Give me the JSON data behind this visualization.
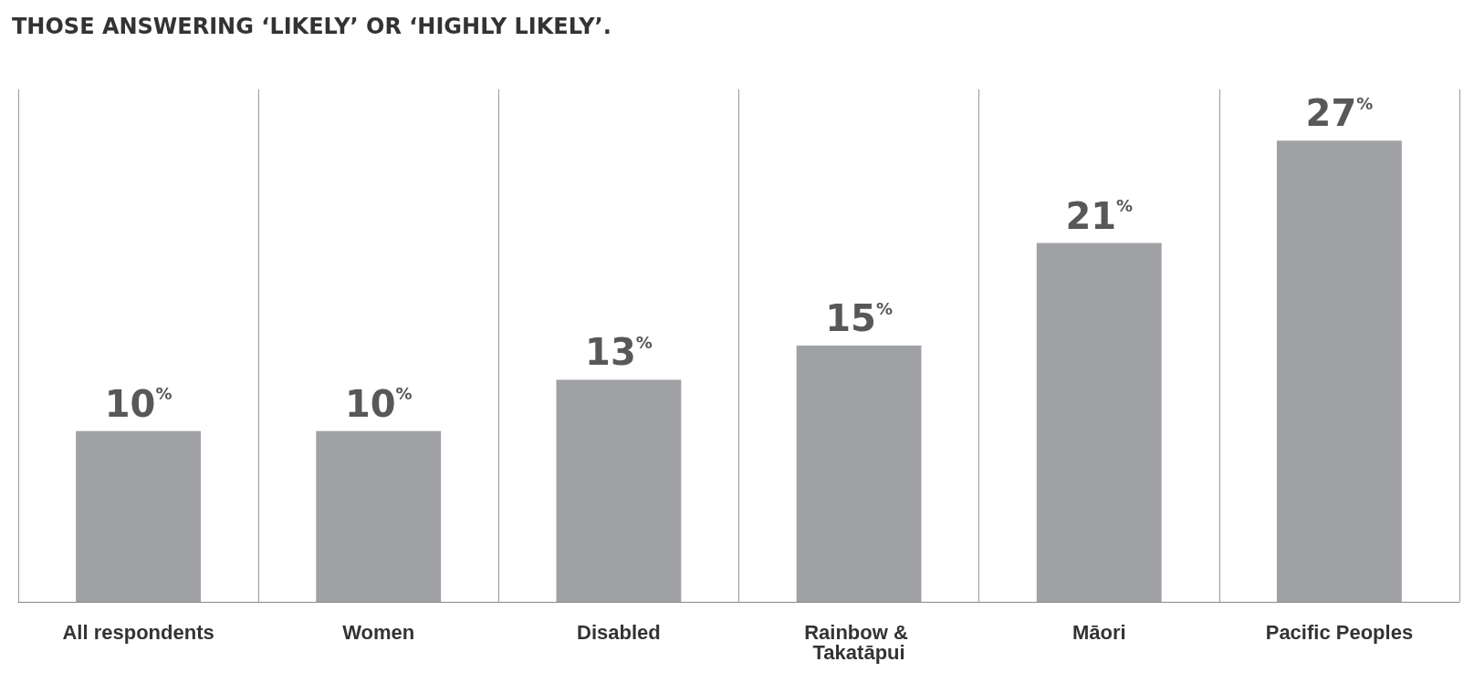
{
  "chart_data": {
    "type": "bar",
    "title": "THOSE ANSWERING ‘LIKELY’ OR ‘HIGHLY LIKELY’.",
    "categories": [
      "All respondents",
      "Women",
      "Disabled",
      "Rainbow & Takatāpui",
      "Māori",
      "Pacific Peoples"
    ],
    "values": [
      10,
      10,
      13,
      15,
      21,
      27
    ],
    "value_labels": [
      "10$^{%}$",
      "10$^{%}$",
      "13$^{%}$",
      "15$^{%}$",
      "21$^{%}$",
      "27$^{%}$"
    ],
    "color": "#a0a1a5",
    "grid": "x"
  }
}
